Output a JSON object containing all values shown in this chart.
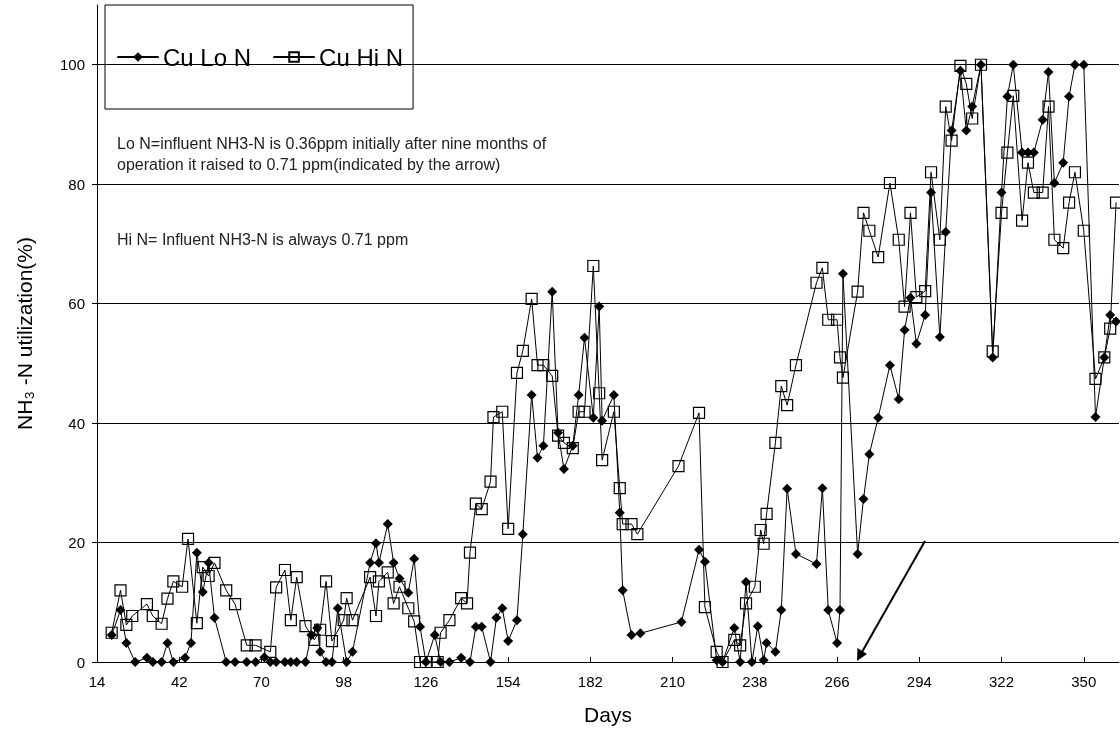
{
  "chart_data": {
    "type": "line",
    "xlabel": "Days",
    "ylabel": "NH₃ -N utilization(%)",
    "xlim": [
      14,
      362
    ],
    "xticks": [
      14,
      42,
      70,
      98,
      126,
      154,
      182,
      210,
      238,
      266,
      294,
      322,
      350
    ],
    "ylim": [
      0,
      110
    ],
    "yticks": [
      0,
      20,
      40,
      60,
      80,
      100
    ],
    "grid": "y",
    "legend": "top left",
    "line_style": "solid",
    "annotations": [
      "Lo N=influent NH3-N is 0.36ppm initially after nine months of operation it raised to 0.71 ppm(indicated by the arrow)",
      "Hi N= Influent NH3-N is always 0.71 ppm"
    ],
    "series": [
      {
        "name": "Cu Lo N",
        "color": "#000000",
        "marker": "diamond",
        "x": [
          19,
          22,
          24,
          27,
          31,
          33,
          36,
          38,
          40,
          44,
          46,
          48,
          50,
          52,
          54,
          58,
          61,
          65,
          68,
          71,
          73,
          75,
          78,
          80,
          82,
          85,
          87,
          89,
          90,
          92,
          94,
          96,
          99,
          101,
          107,
          109,
          110,
          113,
          115,
          117,
          120,
          122,
          124,
          126,
          129,
          131,
          134,
          138,
          141,
          143,
          145,
          148,
          150,
          152,
          154,
          157,
          159,
          162,
          164,
          166,
          169,
          171,
          173,
          176,
          178,
          180,
          183,
          185,
          186,
          190,
          192,
          193,
          196,
          199,
          213,
          219,
          221,
          225,
          227,
          231,
          233,
          235,
          237,
          239,
          241,
          242,
          245,
          247,
          249,
          252,
          259,
          261,
          263,
          266,
          267,
          268,
          273,
          275,
          277,
          280,
          284,
          287,
          289,
          291,
          293,
          296,
          298,
          301,
          303,
          305,
          308,
          310,
          312,
          315,
          319,
          322,
          324,
          326,
          329,
          331,
          333,
          336,
          338,
          340,
          343,
          345,
          347,
          350,
          354,
          357,
          359,
          361
        ],
        "values": [
          4.5,
          8.7,
          3.2,
          0,
          0.7,
          0,
          0,
          3.2,
          0,
          0.7,
          3.2,
          18.3,
          11.7,
          16.6,
          7.4,
          0,
          0,
          0,
          0,
          0.8,
          0,
          0,
          0,
          0,
          0,
          0,
          4.5,
          5.7,
          1.7,
          0,
          0,
          9,
          0,
          1.7,
          16.6,
          19.9,
          16.6,
          23.1,
          16.6,
          14,
          11.6,
          17.3,
          5.9,
          0,
          4.5,
          0,
          0,
          0.7,
          0,
          5.9,
          5.9,
          0,
          7.4,
          9,
          3.5,
          7,
          21.4,
          44.7,
          34.2,
          36.2,
          62,
          38.4,
          32.3,
          36.2,
          44.7,
          54.3,
          40.9,
          59.5,
          40.4,
          44.7,
          25,
          12,
          4.5,
          4.8,
          6.7,
          18.8,
          16.8,
          0.3,
          0,
          5.7,
          0,
          13.4,
          0,
          6,
          0.3,
          3.2,
          1.7,
          8.7,
          29,
          18.1,
          16.4,
          29.1,
          8.7,
          3.2,
          8.7,
          65,
          18.1,
          27.3,
          34.8,
          40.9,
          49.7,
          44,
          55.6,
          61,
          53.3,
          58.1,
          78.6,
          54.4,
          72,
          89,
          99,
          89,
          93,
          100,
          51,
          78.6,
          94.7,
          100,
          85.3,
          85.3,
          85.3,
          90.8,
          98.8,
          80.2,
          83.6,
          94.7,
          100,
          100,
          41,
          51,
          58.1,
          57
        ]
      },
      {
        "name": "Cu Hi N",
        "color": "#000000",
        "marker": "square",
        "x": [
          19,
          22,
          24,
          26,
          31,
          33,
          36,
          38,
          40,
          43,
          45,
          48,
          50,
          52,
          54,
          58,
          61,
          65,
          68,
          73,
          75,
          78,
          80,
          82,
          85,
          88,
          90,
          92,
          94,
          98,
          99,
          101,
          107,
          109,
          110,
          113,
          115,
          117,
          120,
          122,
          124,
          126,
          130,
          131,
          134,
          138,
          140,
          141,
          143,
          145,
          148,
          149,
          152,
          154,
          157,
          159,
          162,
          164,
          166,
          169,
          171,
          173,
          176,
          178,
          180,
          183,
          185,
          186,
          190,
          192,
          193,
          196,
          198,
          212,
          219,
          221,
          225,
          227,
          231,
          233,
          235,
          238,
          240,
          241,
          242,
          245,
          247,
          249,
          252,
          259,
          261,
          263,
          266,
          267,
          268,
          273,
          275,
          277,
          280,
          284,
          287,
          289,
          291,
          293,
          296,
          298,
          301,
          303,
          305,
          308,
          310,
          312,
          315,
          319,
          322,
          324,
          326,
          329,
          331,
          333,
          336,
          338,
          340,
          343,
          345,
          347,
          350,
          354,
          357,
          359,
          361
        ],
        "values": [
          4.9,
          12,
          6.2,
          7.7,
          9.7,
          7.7,
          6.4,
          10.6,
          13.5,
          12.6,
          20.6,
          6.5,
          15.9,
          14.4,
          16.6,
          12,
          9.7,
          2.8,
          2.8,
          1.7,
          12.5,
          15.4,
          7,
          14.2,
          6,
          3.7,
          5.4,
          13.5,
          3.5,
          7,
          10.7,
          7,
          14.2,
          7.7,
          13.5,
          15,
          9.8,
          12.6,
          9,
          6.8,
          0,
          0,
          0,
          4.9,
          7,
          10.7,
          9.8,
          18.3,
          26.5,
          25.6,
          30.2,
          41,
          41.9,
          22.3,
          48.4,
          52.1,
          60.8,
          49.7,
          49.7,
          47.9,
          37.9,
          36.7,
          35.8,
          41.9,
          41.9,
          66.3,
          45,
          33.8,
          41.9,
          29.1,
          23.1,
          23.1,
          21.4,
          32.8,
          41.7,
          9.2,
          1.7,
          0,
          3.7,
          2.8,
          9.8,
          12.6,
          22.1,
          19.8,
          24.8,
          36.7,
          46.2,
          43,
          49.7,
          63.5,
          66,
          57.3,
          57.3,
          51,
          47.6,
          62,
          75.2,
          72.2,
          67.8,
          80.2,
          70.7,
          59.5,
          75.2,
          61.1,
          62.1,
          82,
          70.7,
          93,
          87.3,
          99.8,
          96.8,
          91,
          100,
          52,
          75.2,
          85.3,
          94.8,
          73.9,
          83.6,
          78.6,
          78.6,
          93,
          70.7,
          69.3,
          76.9,
          82,
          72.2,
          47.4,
          51,
          55.8,
          76.9
        ]
      }
    ]
  }
}
